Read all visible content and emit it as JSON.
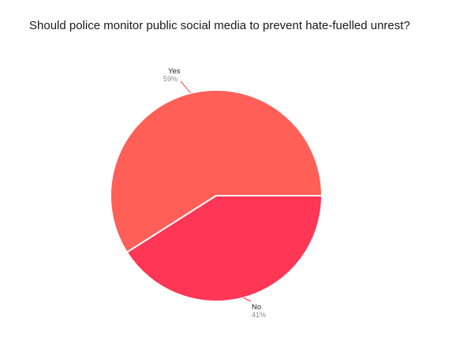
{
  "chart_data": {
    "type": "pie",
    "title": "Should police monitor public social media to prevent hate-fuelled unrest?",
    "slices": [
      {
        "label": "Yes",
        "value": 59,
        "value_label": "59%",
        "color": "#FF5F57"
      },
      {
        "label": "No",
        "value": 41,
        "value_label": "41%",
        "color": "#FF3656"
      }
    ],
    "legend": "none"
  }
}
